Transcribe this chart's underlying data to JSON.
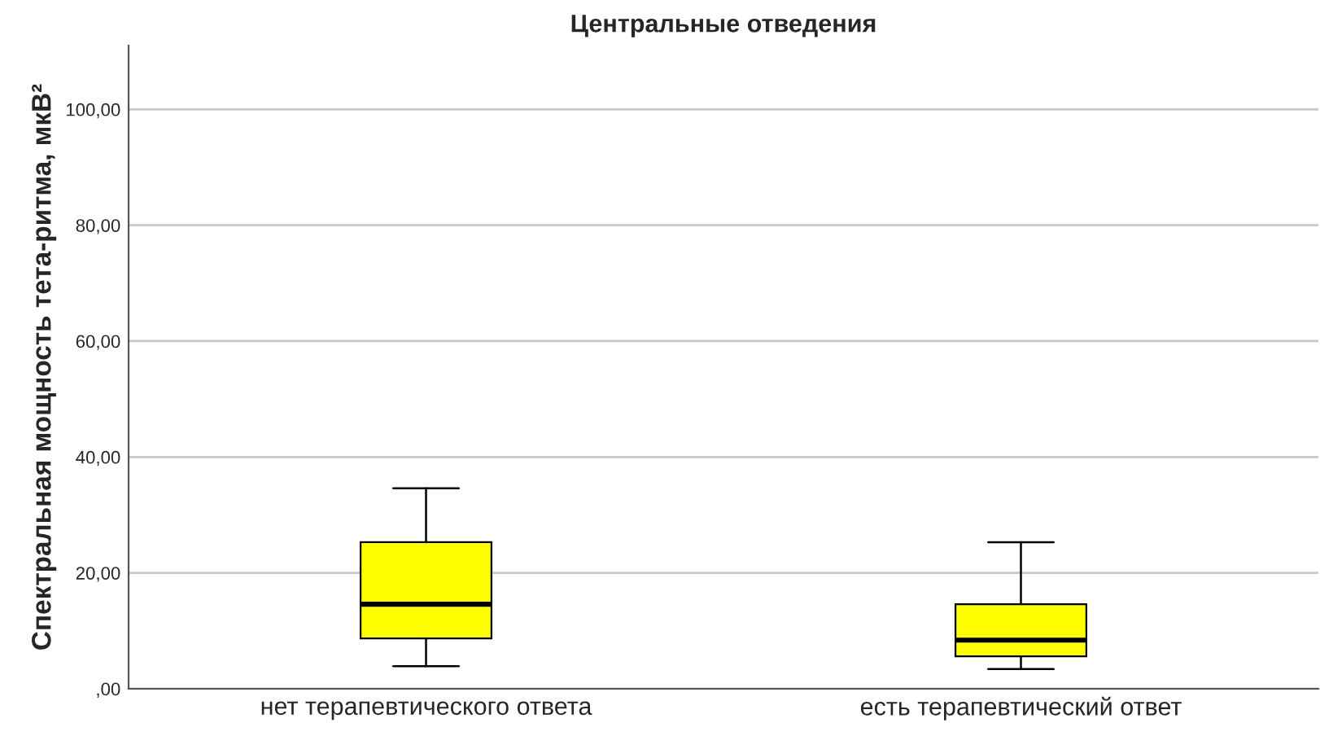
{
  "chart_data": {
    "type": "box",
    "title": "Центральные отведения",
    "ylabel": "Спектральная мощность тета-ритма, мкВ²",
    "categories": [
      "нет терапевтического ответа",
      "есть терапевтический ответ"
    ],
    "series": [
      {
        "color": "#ffff00",
        "boxes": [
          {
            "low": 3.9,
            "q1": 8.7,
            "median": 14.6,
            "q3": 25.3,
            "high": 34.6
          },
          {
            "low": 3.4,
            "q1": 5.6,
            "median": 8.4,
            "q3": 14.6,
            "high": 25.3
          }
        ]
      }
    ],
    "ylim": [
      0,
      111
    ],
    "yticks": [
      {
        "value": 0,
        "label": ",00"
      },
      {
        "value": 20,
        "label": "20,00"
      },
      {
        "value": 40,
        "label": "40,00"
      },
      {
        "value": 60,
        "label": "60,00"
      },
      {
        "value": 80,
        "label": "80,00"
      },
      {
        "value": 100,
        "label": "100,00"
      }
    ],
    "grid": "y"
  }
}
